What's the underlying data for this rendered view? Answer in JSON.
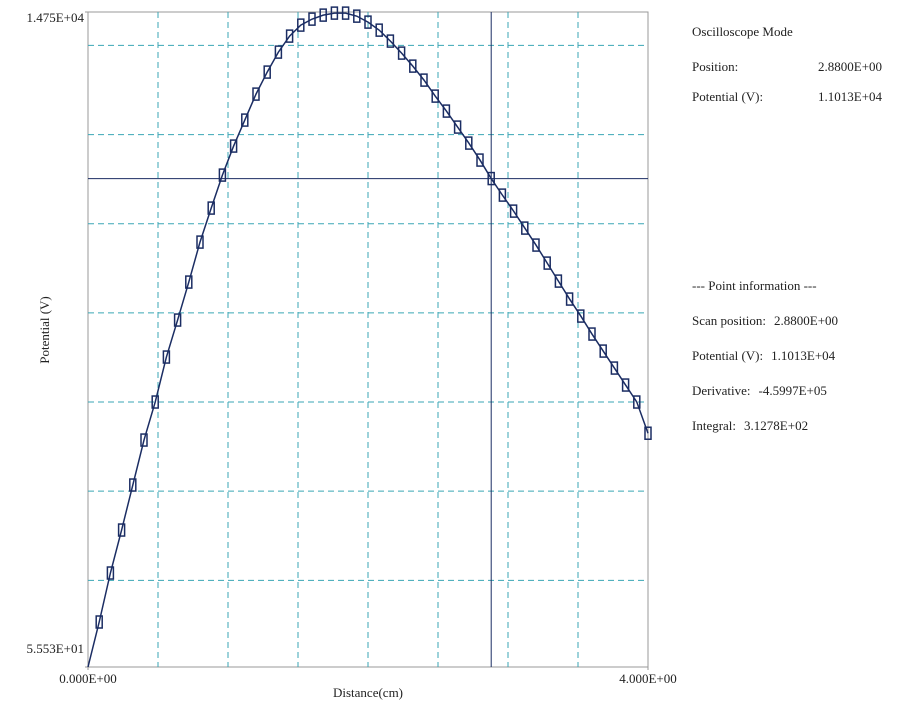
{
  "chart_data": {
    "type": "line",
    "color": "#1b2d63",
    "grid_color": "#3aa6b5",
    "x_label": "Distance(cm)",
    "y_label": "Potential (V)",
    "xlim": [
      0,
      4
    ],
    "ylim": [
      55.53,
      14750
    ],
    "xticks": [
      {
        "value": 0,
        "label": "0.000E+00"
      },
      {
        "value": 4,
        "label": "4.000E+00"
      }
    ],
    "yticks": [
      {
        "value": 55.53,
        "label": "5.553E+01"
      },
      {
        "value": 14750,
        "label": "1.475E+04"
      }
    ],
    "xgrid": [
      0.5,
      1,
      1.5,
      2,
      2.5,
      3,
      3.5
    ],
    "ygrid": [
      2000,
      4000,
      6000,
      8000,
      10000,
      12000,
      14000
    ],
    "cursor": {
      "x": 2.88,
      "y": 11013
    },
    "x": [
      0,
      0.08,
      0.16,
      0.24,
      0.32,
      0.4,
      0.48,
      0.56,
      0.64,
      0.72,
      0.8,
      0.88,
      0.96,
      1.04,
      1.12,
      1.2,
      1.28,
      1.36,
      1.44,
      1.52,
      1.6,
      1.68,
      1.76,
      1.84,
      1.92,
      2,
      2.08,
      2.16,
      2.24,
      2.32,
      2.4,
      2.48,
      2.56,
      2.64,
      2.72,
      2.8,
      2.88,
      2.96,
      3.04,
      3.12,
      3.2,
      3.28,
      3.36,
      3.44,
      3.52,
      3.6,
      3.68,
      3.76,
      3.84,
      3.92,
      4
    ],
    "values": [
      55.53,
      1065,
      2164,
      3128,
      4138,
      5147,
      6000,
      7009,
      7839,
      8691,
      9588,
      10351,
      11091,
      11742,
      12325,
      12908,
      13402,
      13850,
      14209,
      14456,
      14590,
      14680,
      14725,
      14725,
      14657,
      14523,
      14343,
      14097,
      13828,
      13536,
      13222,
      12863,
      12527,
      12168,
      11809,
      11428,
      11013,
      10642,
      10283,
      9902,
      9521,
      9117,
      8713,
      8310,
      7928,
      7525,
      7143,
      6762,
      6381,
      6000,
      5300
    ]
  },
  "panel": {
    "title": "Oscilloscope Mode",
    "rows": [
      [
        "Position:",
        "2.8800E+00"
      ],
      [
        "Potential (V):",
        "1.1013E+04"
      ]
    ],
    "section": "--- Point information ---",
    "info": [
      [
        "Scan position:",
        "2.8800E+00"
      ],
      [
        "Potential (V):",
        "1.1013E+04"
      ],
      [
        "Derivative:",
        "-4.5997E+05"
      ],
      [
        "Integral:",
        "3.1278E+02"
      ]
    ]
  }
}
